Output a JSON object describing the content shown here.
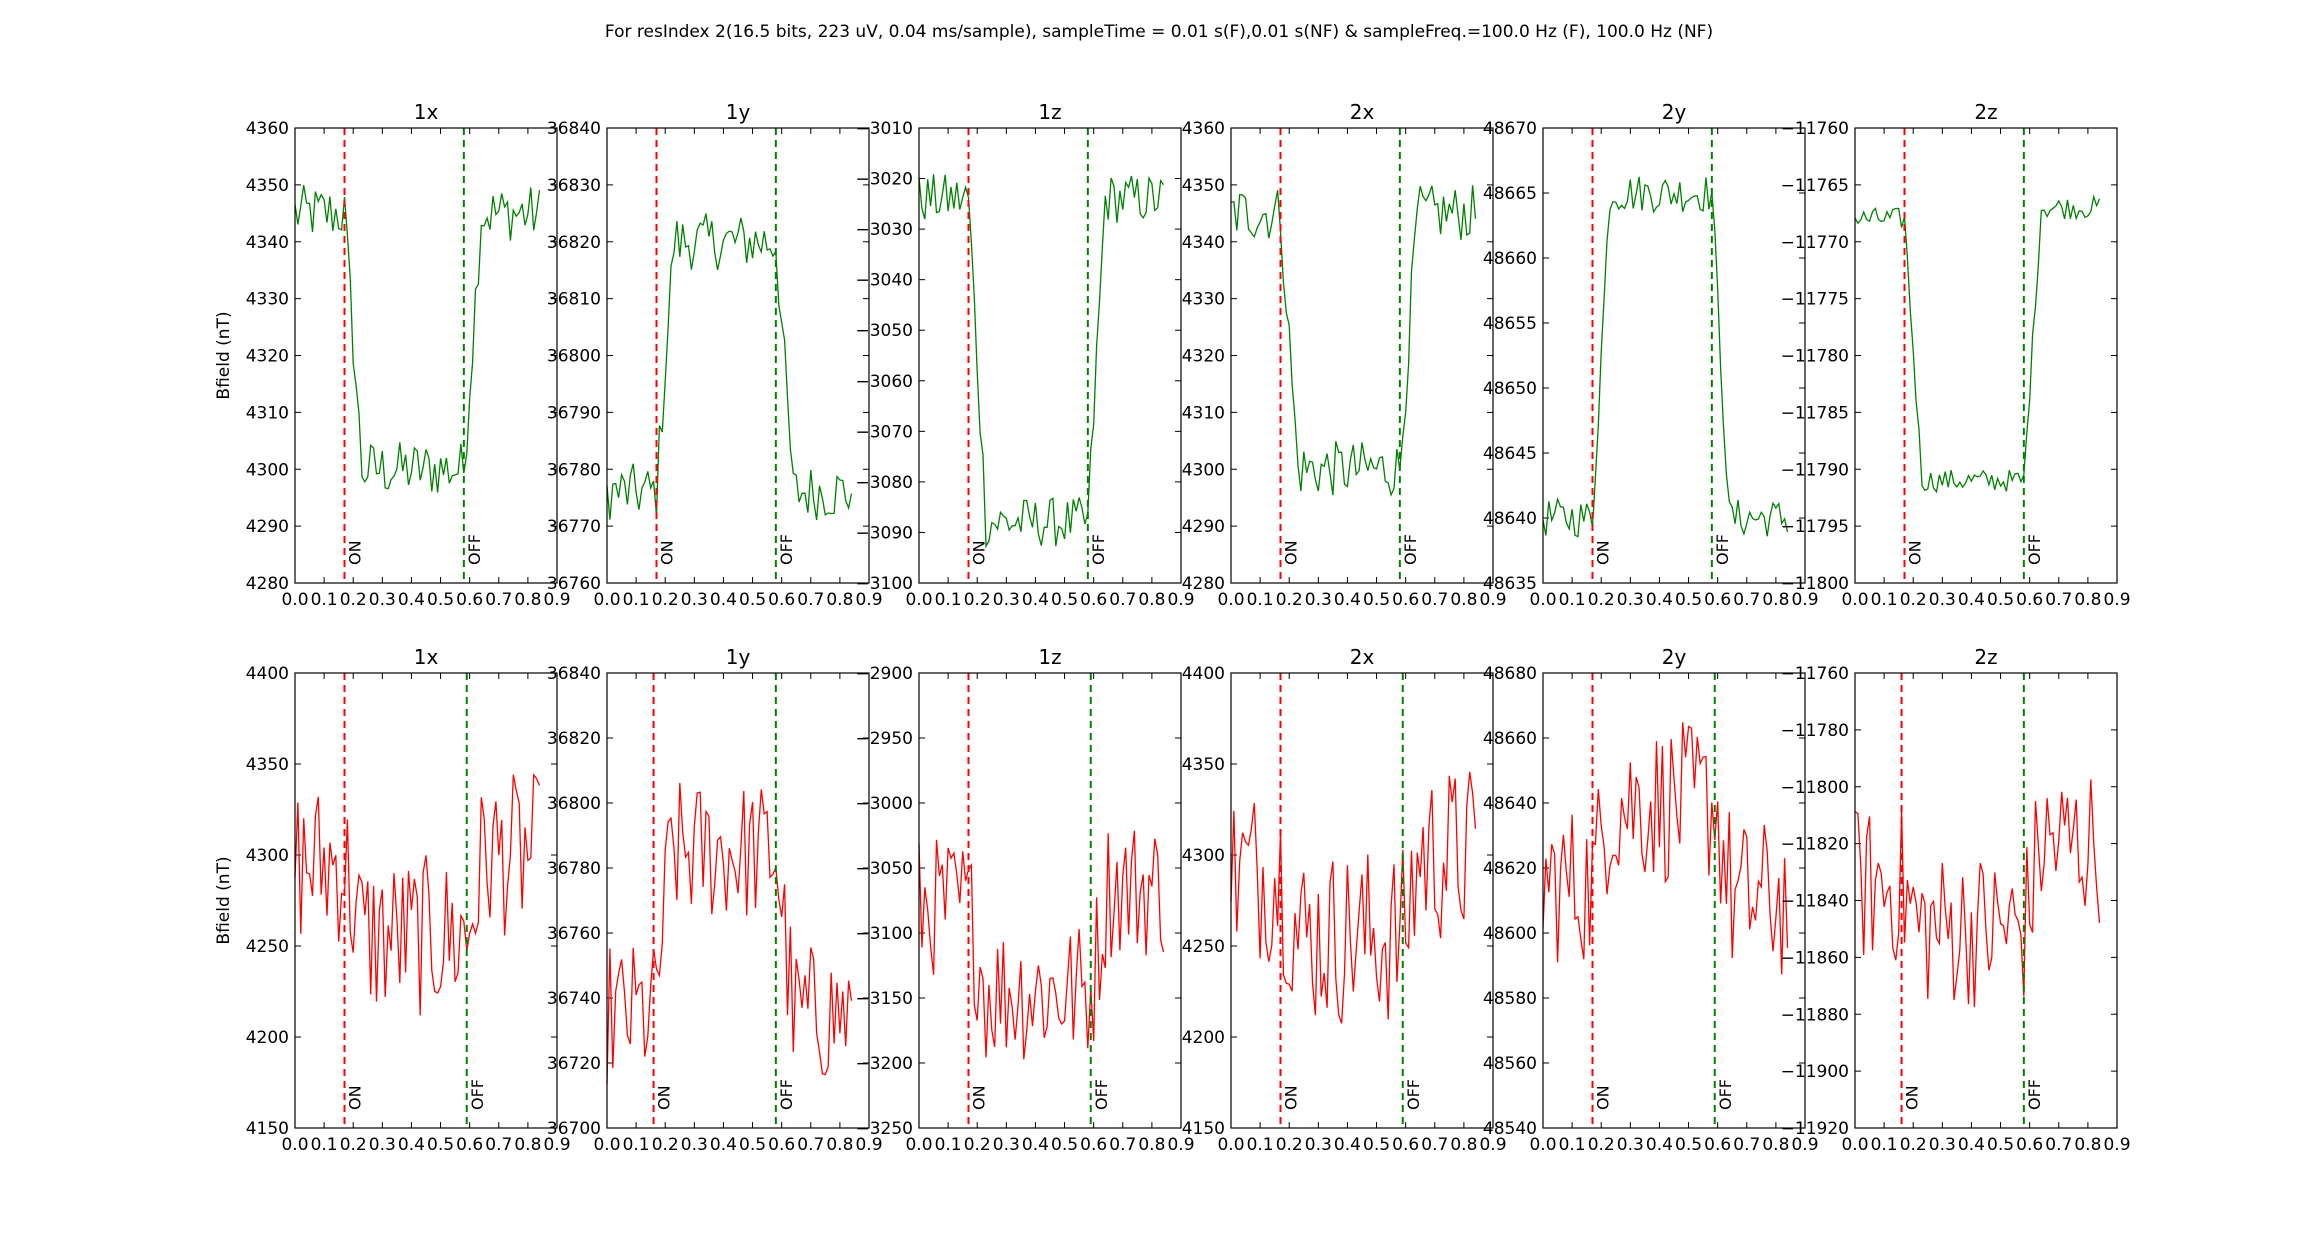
{
  "figure": {
    "suptitle": "For resIndex 2(16.5 bits, 223 uV, 0.04 ms/sample), sampleTime = 0.01 s(F),0.01 s(NF) & sampleFreq.=100.0 Hz (F), 100.0 Hz (NF)"
  },
  "chart_data": [
    {
      "type": "line",
      "title": "1x",
      "ylabel": "Bfield (nT)",
      "ylim": [
        4280,
        4360
      ],
      "yticks": [
        4280,
        4290,
        4300,
        4310,
        4320,
        4330,
        4340,
        4350,
        4360
      ],
      "xlim": [
        0,
        0.9
      ],
      "xticks": [
        "0.0",
        "0.1",
        "0.2",
        "0.3",
        "0.4",
        "0.5",
        "0.6",
        "0.7",
        "0.8",
        "0.9"
      ],
      "on_x": 0.17,
      "off_x": 0.58,
      "on_label": "ON",
      "off_label": "OFF",
      "series": [
        {
          "color": "#008000",
          "levels": [
            4345,
            4300,
            4345
          ],
          "noise": 5,
          "x": [
            0,
            0.01,
            0.02,
            0.03,
            0.04,
            0.05,
            0.06,
            0.07,
            0.08,
            0.09,
            0.1,
            0.11,
            0.12,
            0.13,
            0.14,
            0.15,
            0.16,
            0.17,
            0.18,
            0.19,
            0.2,
            0.21,
            0.22,
            0.23,
            0.24,
            0.25,
            0.26,
            0.27,
            0.28,
            0.29,
            0.3,
            0.31,
            0.32,
            0.33,
            0.34,
            0.35,
            0.36,
            0.37,
            0.38,
            0.39,
            0.4,
            0.41,
            0.42,
            0.43,
            0.44,
            0.45,
            0.46,
            0.47,
            0.48,
            0.49,
            0.5,
            0.51,
            0.52,
            0.53,
            0.54,
            0.55,
            0.56,
            0.57,
            0.58,
            0.59,
            0.6,
            0.61,
            0.62,
            0.63,
            0.64,
            0.65,
            0.66,
            0.67,
            0.68,
            0.69,
            0.7,
            0.71,
            0.72,
            0.73,
            0.74,
            0.75,
            0.76,
            0.77,
            0.78,
            0.79,
            0.8,
            0.81,
            0.82,
            0.83,
            0.84
          ]
        }
      ]
    },
    {
      "type": "line",
      "title": "1y",
      "ylim": [
        36760,
        36840
      ],
      "yticks": [
        36760,
        36770,
        36780,
        36790,
        36800,
        36810,
        36820,
        36830,
        36840
      ],
      "xlim": [
        0,
        0.9
      ],
      "xticks": [
        "0.0",
        "0.1",
        "0.2",
        "0.3",
        "0.4",
        "0.5",
        "0.6",
        "0.7",
        "0.8",
        "0.9"
      ],
      "on_x": 0.17,
      "off_x": 0.58,
      "on_label": "ON",
      "off_label": "OFF",
      "series": [
        {
          "color": "#008000",
          "levels": [
            36776,
            36820,
            36776
          ],
          "noise": 5,
          "x": [
            0,
            0.84
          ]
        }
      ]
    },
    {
      "type": "line",
      "title": "1z",
      "ylim": [
        -3100,
        -3010
      ],
      "yticks": [
        -3100,
        -3090,
        -3080,
        -3070,
        -3060,
        -3050,
        -3040,
        -3030,
        -3020,
        -3010
      ],
      "xlim": [
        0,
        0.9
      ],
      "xticks": [
        "0.0",
        "0.1",
        "0.2",
        "0.3",
        "0.4",
        "0.5",
        "0.6",
        "0.7",
        "0.8",
        "0.9"
      ],
      "on_x": 0.17,
      "off_x": 0.58,
      "on_label": "ON",
      "off_label": "OFF",
      "series": [
        {
          "color": "#008000",
          "levels": [
            -3024,
            -3088,
            -3024
          ],
          "noise": 5,
          "x": [
            0,
            0.84
          ]
        }
      ]
    },
    {
      "type": "line",
      "title": "2x",
      "ylim": [
        4280,
        4360
      ],
      "yticks": [
        4280,
        4290,
        4300,
        4310,
        4320,
        4330,
        4340,
        4350,
        4360
      ],
      "xlim": [
        0,
        0.9
      ],
      "xticks": [
        "0.0",
        "0.1",
        "0.2",
        "0.3",
        "0.4",
        "0.5",
        "0.6",
        "0.7",
        "0.8",
        "0.9"
      ],
      "on_x": 0.17,
      "off_x": 0.58,
      "on_label": "ON",
      "off_label": "OFF",
      "series": [
        {
          "color": "#008000",
          "levels": [
            4345,
            4300,
            4345
          ],
          "noise": 5,
          "x": [
            0,
            0.84
          ]
        }
      ]
    },
    {
      "type": "line",
      "title": "2y",
      "ylim": [
        48635,
        48670
      ],
      "yticks": [
        48635,
        48640,
        48645,
        48650,
        48655,
        48660,
        48665,
        48670
      ],
      "xlim": [
        0,
        0.9
      ],
      "xticks": [
        "0.0",
        "0.1",
        "0.2",
        "0.3",
        "0.4",
        "0.5",
        "0.6",
        "0.7",
        "0.8",
        "0.9"
      ],
      "on_x": 0.17,
      "off_x": 0.58,
      "on_label": "ON",
      "off_label": "OFF",
      "series": [
        {
          "color": "#008000",
          "levels": [
            48640,
            48665,
            48640
          ],
          "noise": 1.5,
          "x": [
            0,
            0.84
          ]
        }
      ]
    },
    {
      "type": "line",
      "title": "2z",
      "ylim": [
        -11800,
        -11760
      ],
      "yticks": [
        -11800,
        -11795,
        -11790,
        -11785,
        -11780,
        -11775,
        -11770,
        -11765,
        -11760
      ],
      "xlim": [
        0,
        0.9
      ],
      "xticks": [
        "0.0",
        "0.1",
        "0.2",
        "0.3",
        "0.4",
        "0.5",
        "0.6",
        "0.7",
        "0.8",
        "0.9"
      ],
      "on_x": 0.17,
      "off_x": 0.58,
      "on_label": "ON",
      "off_label": "OFF",
      "series": [
        {
          "color": "#008000",
          "levels": [
            -11768,
            -11791,
            -11767
          ],
          "noise": 1,
          "x": [
            0,
            0.84
          ]
        }
      ]
    },
    {
      "type": "line",
      "title": "1x",
      "ylabel": "Bfield (nT)",
      "ylim": [
        4150,
        4400
      ],
      "yticks": [
        4150,
        4200,
        4250,
        4300,
        4350,
        4400
      ],
      "xlim": [
        0,
        0.9
      ],
      "xticks": [
        "0.0",
        "0.1",
        "0.2",
        "0.3",
        "0.4",
        "0.5",
        "0.6",
        "0.7",
        "0.8",
        "0.9"
      ],
      "on_x": 0.17,
      "off_x": 0.59,
      "on_label": "ON",
      "off_label": "OFF",
      "series": [
        {
          "color": "#ff0000",
          "levels": [
            4295,
            4255,
            4300
          ],
          "noise": 45,
          "x": [
            0,
            0.84
          ]
        }
      ]
    },
    {
      "type": "line",
      "title": "1y",
      "ylim": [
        36700,
        36840
      ],
      "yticks": [
        36700,
        36720,
        36740,
        36760,
        36780,
        36800,
        36820,
        36840
      ],
      "xlim": [
        0,
        0.9
      ],
      "xticks": [
        "0.0",
        "0.1",
        "0.2",
        "0.3",
        "0.4",
        "0.5",
        "0.6",
        "0.7",
        "0.8",
        "0.9"
      ],
      "on_x": 0.16,
      "off_x": 0.58,
      "on_label": "ON",
      "off_label": "OFF",
      "series": [
        {
          "color": "#ff0000",
          "levels": [
            36735,
            36785,
            36735
          ],
          "noise": 22,
          "x": [
            0,
            0.84
          ]
        }
      ]
    },
    {
      "type": "line",
      "title": "1z",
      "ylim": [
        -3250,
        -2900
      ],
      "yticks": [
        -3250,
        -3200,
        -3150,
        -3100,
        -3050,
        -3000,
        -2950,
        -2900
      ],
      "xlim": [
        0,
        0.9
      ],
      "xticks": [
        "0.0",
        "0.1",
        "0.2",
        "0.3",
        "0.4",
        "0.5",
        "0.6",
        "0.7",
        "0.8",
        "0.9"
      ],
      "on_x": 0.17,
      "off_x": 0.59,
      "on_label": "ON",
      "off_label": "OFF",
      "series": [
        {
          "color": "#ff0000",
          "levels": [
            -3080,
            -3145,
            -3065
          ],
          "noise": 55,
          "x": [
            0,
            0.84
          ]
        }
      ]
    },
    {
      "type": "line",
      "title": "2x",
      "ylim": [
        4150,
        4400
      ],
      "yticks": [
        4150,
        4200,
        4250,
        4300,
        4350,
        4400
      ],
      "xlim": [
        0,
        0.9
      ],
      "xticks": [
        "0.0",
        "0.1",
        "0.2",
        "0.3",
        "0.4",
        "0.5",
        "0.6",
        "0.7",
        "0.8",
        "0.9"
      ],
      "on_x": 0.17,
      "off_x": 0.59,
      "on_label": "ON",
      "off_label": "OFF",
      "series": [
        {
          "color": "#ff0000",
          "levels": [
            4290,
            4255,
            4300
          ],
          "noise": 50,
          "x": [
            0,
            0.84
          ]
        }
      ]
    },
    {
      "type": "line",
      "title": "2y",
      "ylim": [
        48540,
        48680
      ],
      "yticks": [
        48540,
        48560,
        48580,
        48600,
        48620,
        48640,
        48660,
        48680
      ],
      "xlim": [
        0,
        0.9
      ],
      "xticks": [
        "0.0",
        "0.1",
        "0.2",
        "0.3",
        "0.4",
        "0.5",
        "0.6",
        "0.7",
        "0.8",
        "0.9"
      ],
      "on_x": 0.17,
      "off_x": 0.59,
      "on_label": "ON",
      "off_label": "OFF",
      "series": [
        {
          "color": "#ff0000",
          "levels": [
            48615,
            48640,
            48610
          ],
          "noise": 25,
          "x": [
            0,
            0.84
          ]
        }
      ]
    },
    {
      "type": "line",
      "title": "2z",
      "ylim": [
        -11920,
        -11760
      ],
      "yticks": [
        -11920,
        -11900,
        -11880,
        -11860,
        -11840,
        -11820,
        -11800,
        -11780,
        -11760
      ],
      "xlim": [
        0,
        0.9
      ],
      "xticks": [
        "0.0",
        "0.1",
        "0.2",
        "0.3",
        "0.4",
        "0.5",
        "0.6",
        "0.7",
        "0.8",
        "0.9"
      ],
      "on_x": 0.16,
      "off_x": 0.58,
      "on_label": "ON",
      "off_label": "OFF",
      "series": [
        {
          "color": "#ff0000",
          "levels": [
            -11835,
            -11850,
            -11820
          ],
          "noise": 28,
          "x": [
            0,
            0.84
          ]
        }
      ]
    }
  ]
}
